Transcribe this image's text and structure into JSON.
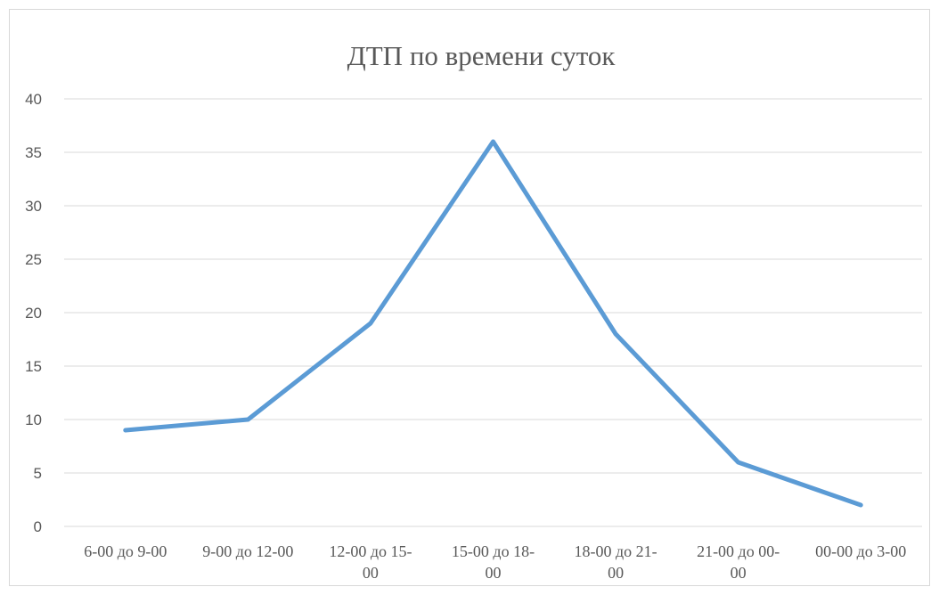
{
  "chart_data": {
    "type": "line",
    "title": "ДТП по времени суток",
    "xlabel": "",
    "ylabel": "",
    "ylim": [
      0,
      40
    ],
    "yticks": [
      "0",
      "5",
      "10",
      "15",
      "20",
      "25",
      "30",
      "35",
      "40"
    ],
    "grid": true,
    "legend": "none",
    "categories": [
      "6-00 до 9-00",
      "9-00 до 12-00",
      "12-00 до 15-00",
      "15-00 до 18-00",
      "18-00 до 21-00",
      "21-00 до 00-00",
      "00-00 до 3-00"
    ],
    "category_lines": [
      [
        "6-00 до 9-00"
      ],
      [
        "9-00 до 12-00"
      ],
      [
        "12-00 до 15-",
        "00"
      ],
      [
        "15-00 до 18-",
        "00"
      ],
      [
        "18-00 до 21-",
        "00"
      ],
      [
        "21-00 до 00-",
        "00"
      ],
      [
        "00-00 до 3-00"
      ]
    ],
    "series": [
      {
        "values": [
          9,
          10,
          19,
          36,
          18,
          6,
          2
        ],
        "color": "#5b9bd5"
      }
    ]
  }
}
